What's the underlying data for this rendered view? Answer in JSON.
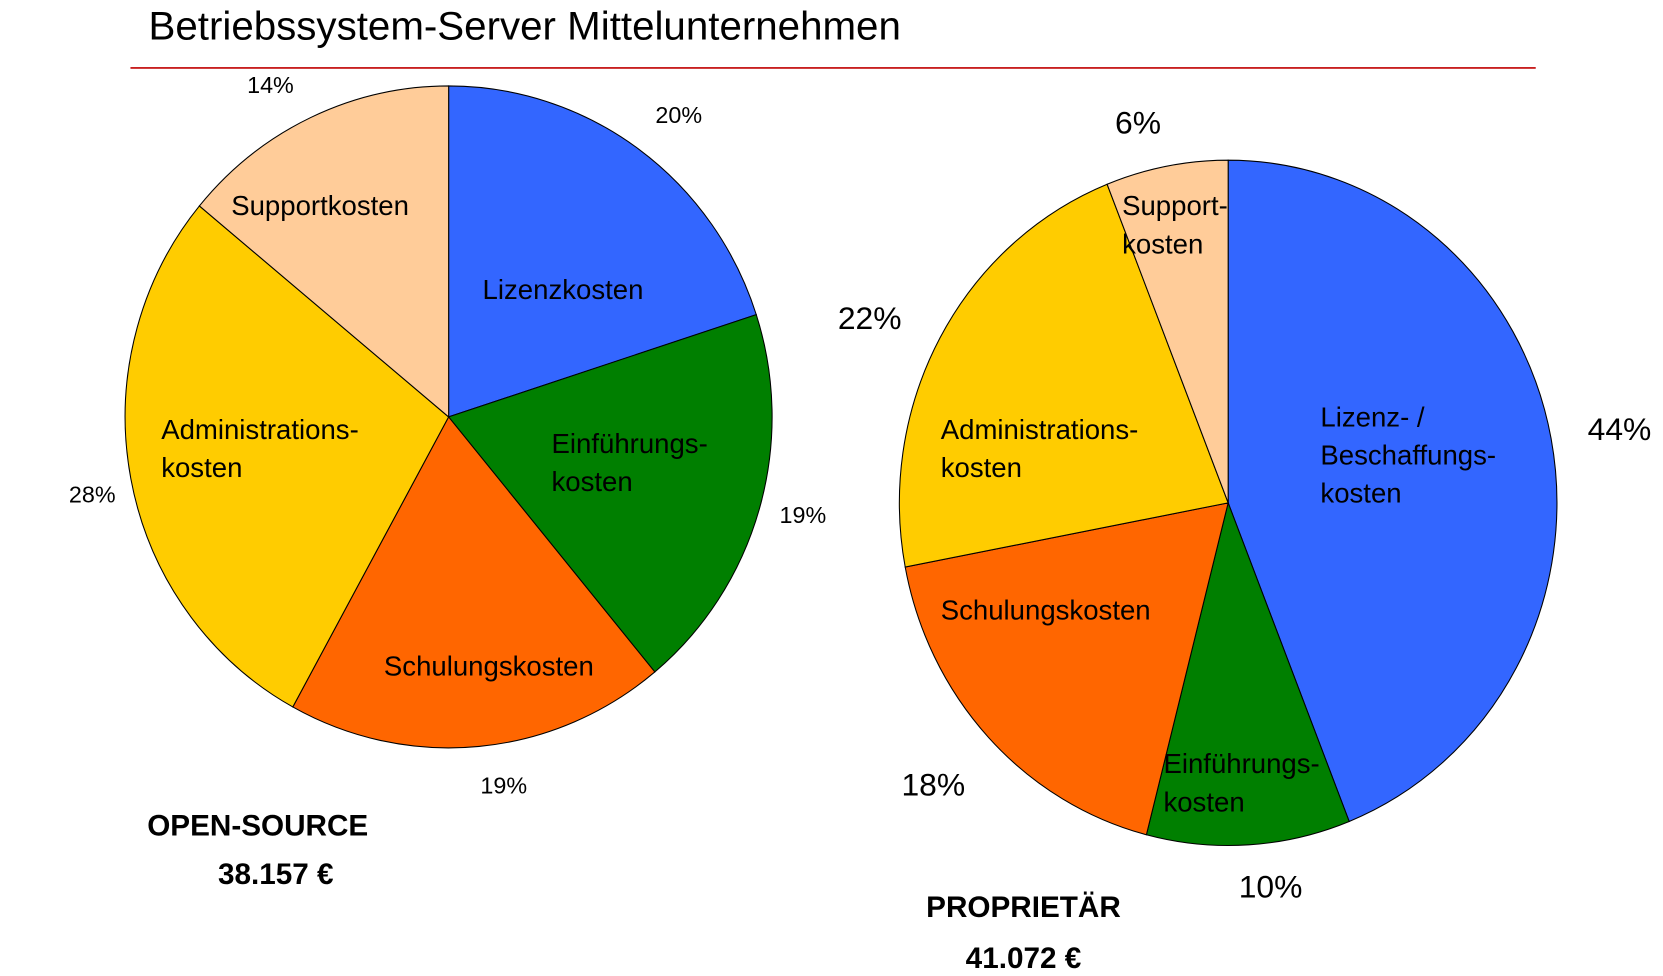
{
  "header": {
    "title": "Betriebssystem-Server Mittelunternehmen"
  },
  "chart_data": [
    {
      "type": "pie",
      "title": "OPEN-SOURCE",
      "caption": "38.157 €",
      "labels": [
        [
          "Lizenzkosten"
        ],
        [
          "Einführungs-",
          "kosten"
        ],
        [
          "Schulungskosten"
        ],
        [
          "Administrations-",
          "kosten"
        ],
        [
          "Supportkosten"
        ]
      ],
      "values": [
        20,
        19,
        19,
        28,
        14
      ],
      "value_labels": [
        "20%",
        "19%",
        "19%",
        "28%",
        "14%"
      ],
      "colors": [
        "#3366ff",
        "#007f00",
        "#ff6600",
        "#ffcc00",
        "#ffcc99"
      ]
    },
    {
      "type": "pie",
      "title": "PROPRIETÄR",
      "caption": "41.072 €",
      "labels": [
        [
          "Lizenz- /",
          "Beschaffungs-",
          "kosten"
        ],
        [
          "Einführungs-",
          "kosten"
        ],
        [
          "Schulungskosten"
        ],
        [
          "Administrations-",
          "kosten"
        ],
        [
          "Support-",
          "kosten"
        ]
      ],
      "values": [
        44,
        10,
        18,
        22,
        6
      ],
      "value_labels": [
        "44%",
        "10%",
        "18%",
        "22%",
        "6%"
      ],
      "colors": [
        "#3366ff",
        "#007f00",
        "#ff6600",
        "#ffcc00",
        "#ffcc99"
      ]
    }
  ]
}
